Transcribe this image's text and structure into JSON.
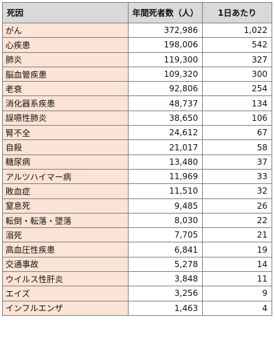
{
  "table": {
    "headers": [
      "死因",
      "年間死者数（人）",
      "1日あたり"
    ],
    "rows": [
      {
        "cause": "がん",
        "annual": "372,986",
        "daily": "1,022"
      },
      {
        "cause": "心疾患",
        "annual": "198,006",
        "daily": "542"
      },
      {
        "cause": "肺炎",
        "annual": "119,300",
        "daily": "327"
      },
      {
        "cause": "脳血管疾患",
        "annual": "109,320",
        "daily": "300"
      },
      {
        "cause": "老衰",
        "annual": "92,806",
        "daily": "254"
      },
      {
        "cause": "消化器系疾患",
        "annual": "48,737",
        "daily": "134"
      },
      {
        "cause": "誤嚥性肺炎",
        "annual": "38,650",
        "daily": "106"
      },
      {
        "cause": "腎不全",
        "annual": "24,612",
        "daily": "67"
      },
      {
        "cause": "自殺",
        "annual": "21,017",
        "daily": "58"
      },
      {
        "cause": "糖尿病",
        "annual": "13,480",
        "daily": "37"
      },
      {
        "cause": "アルツハイマー病",
        "annual": "11,969",
        "daily": "33"
      },
      {
        "cause": "敗血症",
        "annual": "11,510",
        "daily": "32"
      },
      {
        "cause": "窒息死",
        "annual": "9,485",
        "daily": "26"
      },
      {
        "cause": "転倒・転落・墜落",
        "annual": "8,030",
        "daily": "22"
      },
      {
        "cause": "溺死",
        "annual": "7,705",
        "daily": "21"
      },
      {
        "cause": "高血圧性疾患",
        "annual": "6,841",
        "daily": "19"
      },
      {
        "cause": "交通事故",
        "annual": "5,278",
        "daily": "14"
      },
      {
        "cause": "ウイルス性肝炎",
        "annual": "3,848",
        "daily": "11"
      },
      {
        "cause": "エイズ",
        "annual": "3,256",
        "daily": "9"
      },
      {
        "cause": "インフルエンザ",
        "annual": "1,463",
        "daily": "4"
      }
    ]
  }
}
